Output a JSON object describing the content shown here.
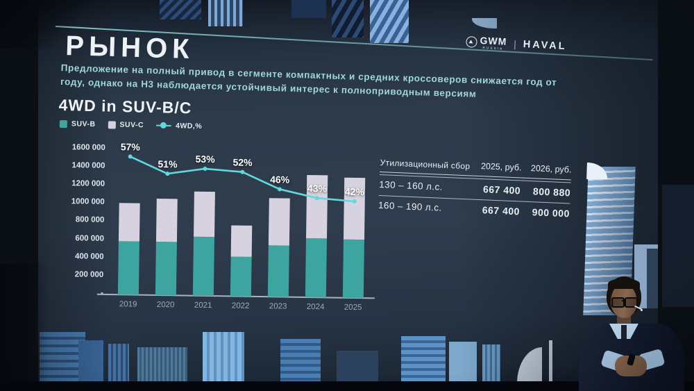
{
  "header": {
    "title": "РЫНОК",
    "subtitle": "Предложение на полный привод в сегменте компактных и средних кроссоверов снижается год от году, однако на Н3 наблюдается устойчивый интерес к полноприводным версиям"
  },
  "brand": {
    "gwm": "GWM",
    "gwm_country": "RUSSIA",
    "divider": "|",
    "haval": "HAVAL"
  },
  "section": {
    "title": "4WD in SUV-B/C"
  },
  "legend": [
    {
      "label": "SUV-B",
      "color": "#3da4a0",
      "type": "square"
    },
    {
      "label": "SUV-C",
      "color": "#d6d2e0",
      "type": "square"
    },
    {
      "label": "4WD,%",
      "color": "#62d8de",
      "type": "line-dot"
    }
  ],
  "chart_data": {
    "type": "combo",
    "stacked": true,
    "categories": [
      "2019",
      "2020",
      "2021",
      "2022",
      "2023",
      "2024",
      "2025"
    ],
    "series": [
      {
        "name": "SUV-B",
        "kind": "bar",
        "color": "#3da4a0",
        "values": [
          590000,
          590000,
          655000,
          440000,
          565000,
          655000,
          640000
        ]
      },
      {
        "name": "SUV-C",
        "kind": "bar",
        "color": "#d6d2e0",
        "values": [
          420000,
          475000,
          495000,
          345000,
          525000,
          690000,
          685000
        ]
      },
      {
        "name": "4WD,%",
        "kind": "line",
        "color": "#62d8de",
        "values": [
          57,
          51,
          53,
          52,
          46,
          43,
          42
        ],
        "labels": [
          "57%",
          "51%",
          "53%",
          "52%",
          "46%",
          "43%",
          "42%"
        ]
      }
    ],
    "y_ticks": [
      "1600 000",
      "1400 000",
      "1200 000",
      "1000 000",
      "800 000",
      "600 000",
      "400 000",
      "200 000",
      "-"
    ],
    "ylim": [
      0,
      1600000
    ],
    "xlabel": "",
    "ylabel": "",
    "grid": false,
    "legend_position": "top-left"
  },
  "table": {
    "header": {
      "col0": "Утилизационный сбор",
      "col1": "2025, руб.",
      "col2": "2026, руб."
    },
    "rows": [
      {
        "label": "130 – 160 л.с.",
        "v2025": "667 400",
        "v2026": "800 880"
      },
      {
        "label": "160 – 190 л.с.",
        "v2025": "667 400",
        "v2026": "900 000"
      }
    ]
  },
  "colors": {
    "slide_bg": "#2d3b4b",
    "stage_bg": "#0a0f16",
    "suv_b": "#3da4a0",
    "suv_c": "#d6d2e0",
    "line": "#62d8de",
    "header_rule": "#8fd4d8",
    "subtitle_text": "#9fd6da"
  },
  "scene": {
    "description": "Presenter in dark suit and glasses standing at bottom right in front of blue city-skyline screen graphics"
  }
}
